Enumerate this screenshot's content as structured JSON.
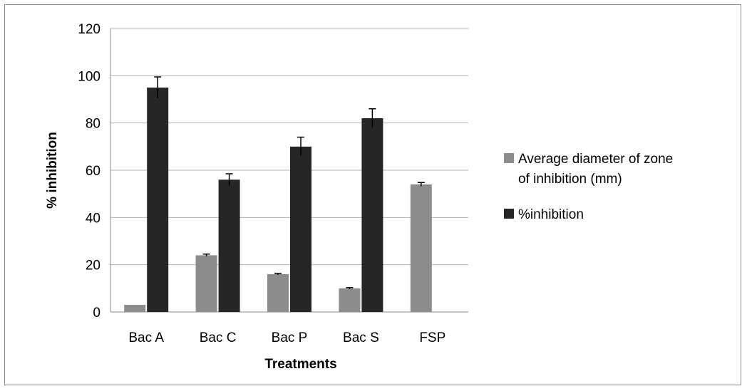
{
  "chart_data": {
    "type": "bar",
    "title": "",
    "xlabel": "Treatments",
    "ylabel": "% inhibition",
    "ylim": [
      0,
      120
    ],
    "yticks": [
      0,
      20,
      40,
      60,
      80,
      100,
      120
    ],
    "grid": true,
    "legend_position": "right",
    "categories": [
      "Bac A",
      "Bac C",
      "Bac P",
      "Bac S",
      "FSP"
    ],
    "series": [
      {
        "name": "Average diameter of zone of inhibition (mm)",
        "legend_lines": [
          "Average diameter of zone",
          "of inhibition (mm)"
        ],
        "color": "#8c8c8c",
        "values": [
          3,
          24,
          16,
          10,
          54
        ],
        "errors": [
          0,
          0.5,
          0.3,
          0.3,
          0.8
        ]
      },
      {
        "name": "%inhibition",
        "legend_lines": [
          "%inhibition"
        ],
        "color": "#262626",
        "values": [
          95,
          56,
          70,
          82,
          null
        ],
        "errors": [
          4.5,
          2.5,
          4,
          4,
          null
        ]
      }
    ]
  },
  "colors": {
    "gridline": "#b3b3b3",
    "axis": "#8a8a8a",
    "error_bar": "#000000"
  }
}
